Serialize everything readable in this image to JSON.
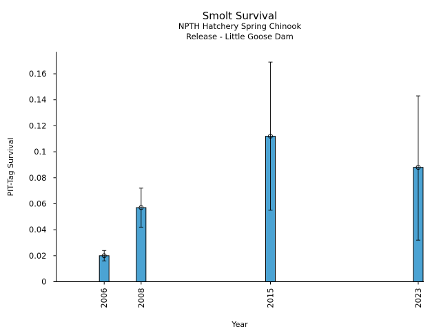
{
  "chart_data": {
    "type": "bar",
    "title": "Smolt Survival",
    "subtitle_lines": [
      "NPTH Hatchery Spring Chinook",
      "Release - Little Goose Dam"
    ],
    "xlabel": "Year",
    "ylabel": "PIT-Tag Survival",
    "categories": [
      "2006",
      "2008",
      "2015",
      "2023"
    ],
    "x": [
      2006,
      2008,
      2015,
      2023
    ],
    "values": [
      0.02,
      0.057,
      0.112,
      0.088
    ],
    "error_low": [
      0.016,
      0.042,
      0.055,
      0.032
    ],
    "error_high": [
      0.024,
      0.072,
      0.169,
      0.143
    ],
    "xlim": [
      2003.4,
      2023.3
    ],
    "ylim": [
      0,
      0.177
    ],
    "yticks": [
      0,
      0.02,
      0.04,
      0.06,
      0.08,
      0.1,
      0.12,
      0.14,
      0.16
    ],
    "ytick_labels": [
      "0",
      "0.02",
      "0.04",
      "0.06",
      "0.08",
      "0.1",
      "0.12",
      "0.14",
      "0.16"
    ],
    "bar_color": "#4ba3d3",
    "grid": false,
    "legend": "none"
  }
}
